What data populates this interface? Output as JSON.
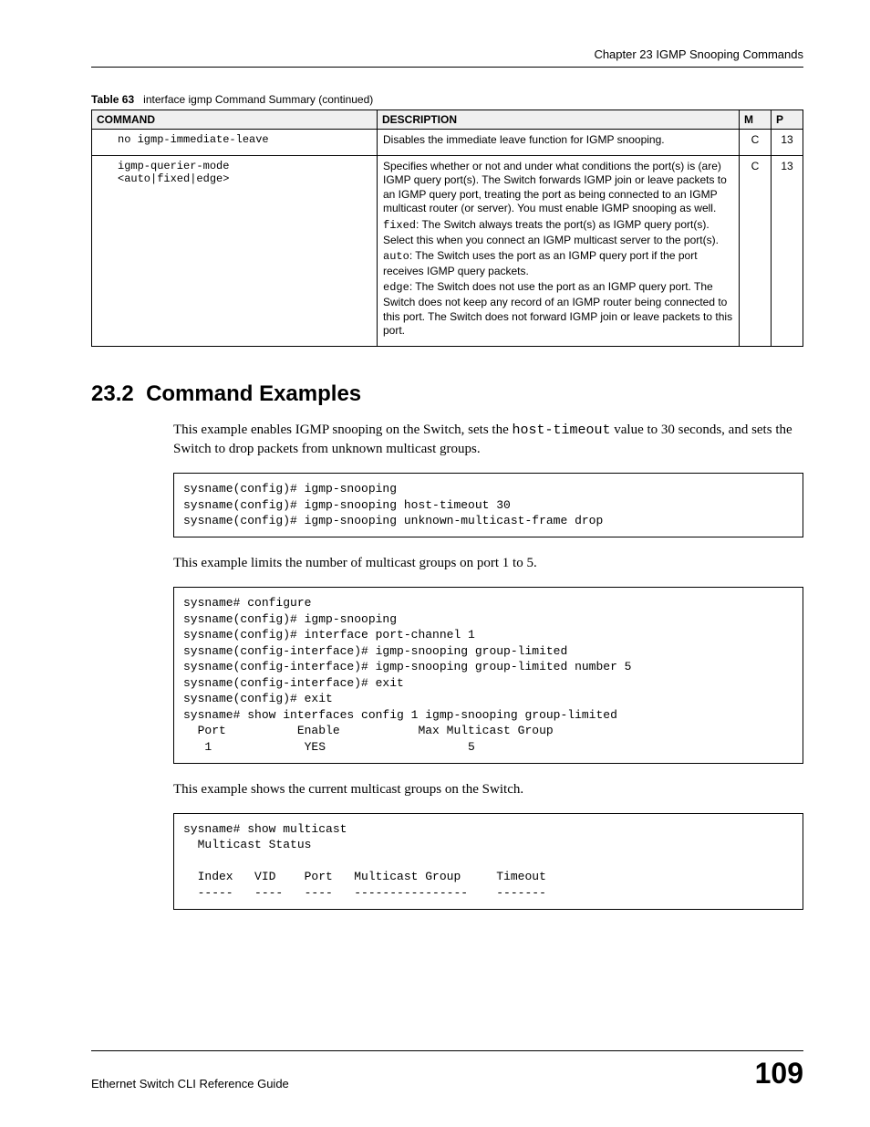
{
  "header": {
    "chapter": "Chapter 23 IGMP Snooping Commands"
  },
  "table": {
    "caption_label": "Table 63",
    "caption_text": "interface igmp Command Summary (continued)",
    "headers": {
      "command": "COMMAND",
      "description": "DESCRIPTION",
      "m": "M",
      "p": "P"
    },
    "rows": [
      {
        "command": "no igmp-immediate-leave",
        "description": [
          {
            "type": "plain",
            "text": "Disables the immediate leave function for IGMP snooping."
          }
        ],
        "m": "C",
        "p": "13"
      },
      {
        "command": "igmp-querier-mode\n<auto|fixed|edge>",
        "description": [
          {
            "type": "plain",
            "text": "Specifies whether or not and under what conditions the port(s) is (are) IGMP query port(s). The Switch forwards IGMP join or leave packets to an IGMP query port, treating the port as being connected to an IGMP multicast router (or server). You must enable IGMP snooping as well."
          },
          {
            "type": "mono-lead",
            "lead": "fixed",
            "text": ": The Switch always treats the port(s) as IGMP query port(s). Select this when you connect an IGMP multicast server to the port(s)."
          },
          {
            "type": "mono-lead",
            "lead": "auto",
            "text": ": The Switch uses the port as an IGMP query port if the port receives IGMP query packets."
          },
          {
            "type": "mono-lead",
            "lead": "edge",
            "text": ": The Switch does not use the port as an IGMP query port. The Switch does not keep any record of an IGMP router being connected to this port. The Switch does not forward IGMP join or leave packets to this port."
          }
        ],
        "m": "C",
        "p": "13"
      }
    ]
  },
  "section": {
    "number": "23.2",
    "title": "Command Examples"
  },
  "paragraphs": {
    "p1_pre": "This example enables IGMP snooping on the Switch, sets the ",
    "p1_mono": "host-timeout",
    "p1_post": " value to 30 seconds, and sets the Switch to drop packets from unknown multicast groups.",
    "p2": "This example limits the number of multicast groups on port 1 to 5.",
    "p3": "This example shows the current multicast groups on the Switch."
  },
  "code": {
    "c1": "sysname(config)# igmp-snooping\nsysname(config)# igmp-snooping host-timeout 30\nsysname(config)# igmp-snooping unknown-multicast-frame drop",
    "c2": "sysname# configure\nsysname(config)# igmp-snooping\nsysname(config)# interface port-channel 1\nsysname(config-interface)# igmp-snooping group-limited\nsysname(config-interface)# igmp-snooping group-limited number 5\nsysname(config-interface)# exit\nsysname(config)# exit\nsysname# show interfaces config 1 igmp-snooping group-limited\n  Port          Enable           Max Multicast Group\n   1             YES                    5",
    "c3": "sysname# show multicast\n  Multicast Status\n\n  Index   VID    Port   Multicast Group     Timeout\n  -----   ----   ----   ----------------    -------"
  },
  "footer": {
    "left": "Ethernet Switch CLI Reference Guide",
    "page": "109"
  }
}
